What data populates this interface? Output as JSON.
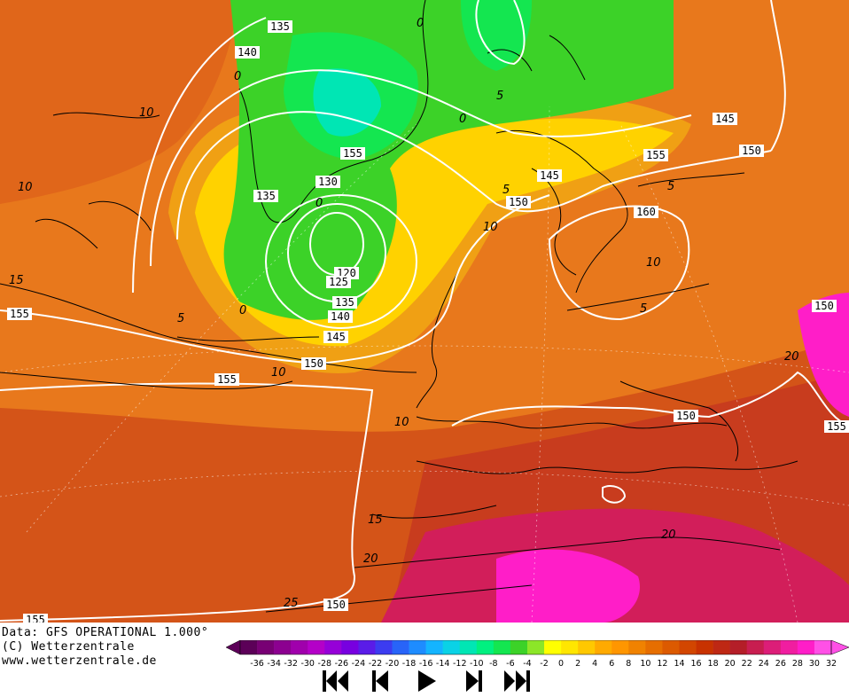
{
  "map": {
    "contour_labels": {
      "height": [
        "135",
        "140",
        "135",
        "130",
        "120",
        "125",
        "135",
        "140",
        "145",
        "150",
        "155",
        "155",
        "145",
        "150",
        "155",
        "150",
        "160",
        "145",
        "150",
        "155",
        "150",
        "150",
        "155",
        "155"
      ],
      "temperature": [
        "10",
        "10",
        "15",
        "5",
        "0",
        "0",
        "5",
        "5",
        "0",
        "0",
        "10",
        "5",
        "10",
        "5",
        "10",
        "10",
        "15",
        "20",
        "25",
        "20",
        "20",
        "0"
      ]
    }
  },
  "footer": {
    "data_line": "Data: GFS OPERATIONAL 1.000°",
    "copyright_line": "(C) Wetterzentrale",
    "url_line": "www.wetterzentrale.de"
  },
  "colorbar": {
    "labels": [
      "-36",
      "-34",
      "-32",
      "-30",
      "-28",
      "-26",
      "-24",
      "-22",
      "-20",
      "-18",
      "-16",
      "-14",
      "-12",
      "-10",
      "-8",
      "-6",
      "-4",
      "-2",
      "0",
      "2",
      "4",
      "6",
      "8",
      "10",
      "12",
      "14",
      "16",
      "18",
      "20",
      "22",
      "24",
      "26",
      "28",
      "30",
      "32"
    ],
    "colors": [
      "#5c0058",
      "#780074",
      "#8c0090",
      "#a000ac",
      "#b400c8",
      "#9600d8",
      "#7800e0",
      "#5a1ce8",
      "#3c3cf0",
      "#2864f8",
      "#1e8cff",
      "#14b4ff",
      "#0ad2e6",
      "#00e6b4",
      "#00f080",
      "#14e650",
      "#3cd228",
      "#8ce628",
      "#ffff00",
      "#ffe600",
      "#ffc800",
      "#ffaa00",
      "#ff9600",
      "#f08200",
      "#e66e00",
      "#dc5a00",
      "#d24600",
      "#c83200",
      "#be2814",
      "#b41e28",
      "#c81e50",
      "#dc1e78",
      "#f01ea0",
      "#ff1ec8",
      "#ff50e6"
    ]
  },
  "controls": {
    "buttons": [
      "first-frame",
      "previous-frame",
      "play",
      "next-frame",
      "last-frame"
    ]
  }
}
